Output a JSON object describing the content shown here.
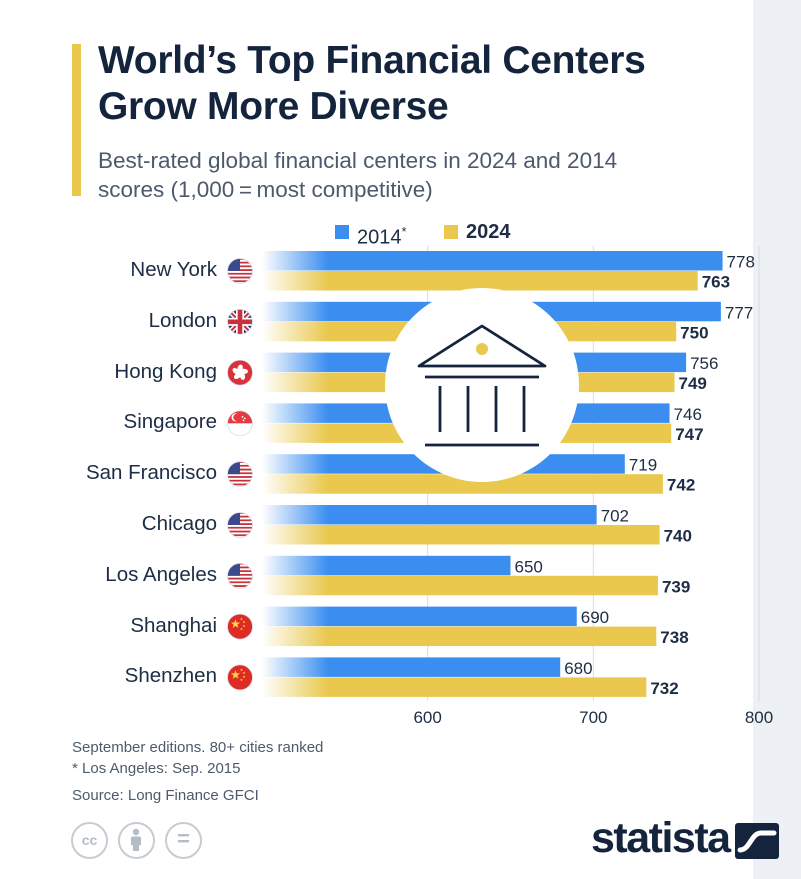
{
  "header": {
    "title_line1": "World’s Top Financial Centers",
    "title_line2": "Grow More Diverse",
    "subtitle_line1": "Best-rated global financial centers in 2024 and 2014",
    "subtitle_line2": "scores (1,000 = most competitive)"
  },
  "legend": {
    "series_2014": "2014",
    "series_2014_mark": "*",
    "series_2024": "2024"
  },
  "footnotes": {
    "line1": "September editions. 80+ cities ranked",
    "line2": "* Los Angeles: Sep. 2015",
    "source": "Source: Long Finance GFCI"
  },
  "license_icons": [
    "cc-icon",
    "attribution-icon",
    "no-derivatives-icon"
  ],
  "license_text": {
    "cc": "cc",
    "nd": "="
  },
  "brand": {
    "name": "statista",
    "mark": "statista-logo-icon"
  },
  "colors": {
    "series_2014": "#3b8ef0",
    "series_2024": "#e9c84d",
    "title": "#14243c",
    "accent_bar": "#e9c84d",
    "gridline": "#d7dce3"
  },
  "chart_data": {
    "type": "bar",
    "orientation": "horizontal",
    "categories": [
      "New York",
      "London",
      "Hong Kong",
      "Singapore",
      "San Francisco",
      "Chicago",
      "Los Angeles",
      "Shanghai",
      "Shenzhen"
    ],
    "flags": [
      "us-flag-icon",
      "uk-flag-icon",
      "hong-kong-flag-icon",
      "singapore-flag-icon",
      "us-flag-icon",
      "us-flag-icon",
      "us-flag-icon",
      "china-flag-icon",
      "china-flag-icon"
    ],
    "series": [
      {
        "name": "2014*",
        "color": "#3b8ef0",
        "values": [
          778,
          777,
          756,
          746,
          719,
          702,
          650,
          690,
          680
        ]
      },
      {
        "name": "2024",
        "color": "#e9c84d",
        "values": [
          763,
          750,
          749,
          747,
          742,
          740,
          739,
          738,
          732
        ]
      }
    ],
    "xlim": [
      500,
      800
    ],
    "xticks": [
      600,
      700,
      800
    ],
    "grid": true,
    "legend_position": "top-center",
    "center_icon": "bank-building-icon"
  }
}
